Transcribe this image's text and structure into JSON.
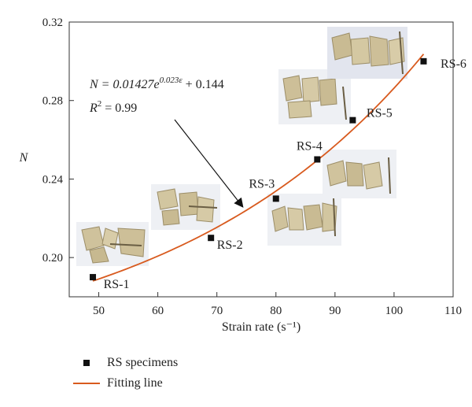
{
  "chart_data": {
    "type": "scatter",
    "xlabel": "Strain rate (s⁻¹)",
    "ylabel": "N",
    "xlim": [
      45,
      110
    ],
    "ylim": [
      0.18,
      0.32
    ],
    "xticks": [
      50,
      60,
      70,
      80,
      90,
      100,
      110
    ],
    "yticks": [
      0.2,
      0.24,
      0.28,
      0.32
    ],
    "ytick_labels": [
      "0.20",
      "0.24",
      "0.28",
      "0.32"
    ],
    "grid": false,
    "legend_position": "bottom-left, below plot",
    "series": [
      {
        "name": "RS specimens",
        "marker": "square",
        "color": "#111111",
        "points": [
          {
            "x": 49,
            "y": 0.19,
            "label": "RS-1"
          },
          {
            "x": 69,
            "y": 0.21,
            "label": "RS-2"
          },
          {
            "x": 80,
            "y": 0.23,
            "label": "RS-3"
          },
          {
            "x": 87,
            "y": 0.25,
            "label": "RS-4"
          },
          {
            "x": 93,
            "y": 0.27,
            "label": "RS-5"
          },
          {
            "x": 105,
            "y": 0.3,
            "label": "RS-6"
          }
        ]
      },
      {
        "name": "Fitting line",
        "type": "line",
        "color": "#d85a1e",
        "model": {
          "a": 0.01427,
          "b": 0.023,
          "c": 0.144
        },
        "x_range": [
          49,
          105
        ]
      }
    ],
    "annotation": {
      "equation_prefix": "N = 0.01427",
      "equation_base": "e",
      "equation_exponent": "0.023ε",
      "equation_suffix": " + 0.144",
      "r2_prefix": "R",
      "r2_exp": "2",
      "r2_suffix": " = 0.99"
    }
  },
  "legend": {
    "items": [
      {
        "label": "RS specimens"
      },
      {
        "label": "Fitting line"
      }
    ]
  }
}
